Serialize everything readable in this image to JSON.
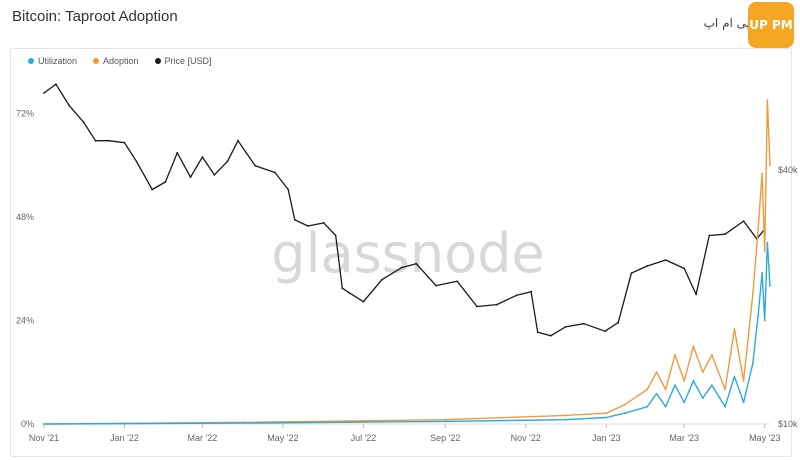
{
  "page": {
    "title": "Bitcoin: Taproot Adoption",
    "watermark": "glassnode"
  },
  "logo": {
    "text": "پی ام اپ",
    "badge": "UP PM"
  },
  "legend": [
    {
      "label": "Utilization",
      "color": "#2ea9df"
    },
    {
      "label": "Adoption",
      "color": "#f09a3e"
    },
    {
      "label": "Price [USD]",
      "color": "#1a1a1a"
    }
  ],
  "chart_data": {
    "type": "line",
    "x_labels": [
      "Nov '21",
      "Jan '22",
      "Mar '22",
      "May '22",
      "Jul '22",
      "Sep '22",
      "Nov '22",
      "Jan '23",
      "Mar '23",
      "May '23"
    ],
    "left_axis": {
      "ticks": [
        "72%",
        "48%",
        "24%",
        "0%"
      ],
      "values": [
        72,
        48,
        24,
        0
      ],
      "ylim": [
        0,
        76
      ]
    },
    "right_axis": {
      "ticks": [
        "$40k",
        "$10k"
      ],
      "scale": "log",
      "ylim": [
        10000,
        60000
      ]
    },
    "series": [
      {
        "name": "Price [USD]",
        "color": "#1a1a1a",
        "axis": "right",
        "x": [
          "2021-11-01",
          "2021-11-10",
          "2021-11-20",
          "2021-12-01",
          "2021-12-10",
          "2021-12-20",
          "2022-01-01",
          "2022-01-10",
          "2022-01-22",
          "2022-02-01",
          "2022-02-10",
          "2022-02-20",
          "2022-03-01",
          "2022-03-10",
          "2022-03-20",
          "2022-03-28",
          "2022-04-10",
          "2022-04-25",
          "2022-05-05",
          "2022-05-10",
          "2022-05-20",
          "2022-06-01",
          "2022-06-10",
          "2022-06-15",
          "2022-06-20",
          "2022-07-01",
          "2022-07-15",
          "2022-07-30",
          "2022-08-10",
          "2022-08-25",
          "2022-09-10",
          "2022-09-25",
          "2022-10-10",
          "2022-10-25",
          "2022-11-05",
          "2022-11-10",
          "2022-11-20",
          "2022-12-01",
          "2022-12-15",
          "2022-12-31",
          "2023-01-10",
          "2023-01-20",
          "2023-02-01",
          "2023-02-15",
          "2023-03-01",
          "2023-03-10",
          "2023-03-20",
          "2023-04-01",
          "2023-04-15",
          "2023-04-25",
          "2023-05-01"
        ],
        "values": [
          61000,
          64000,
          57000,
          52000,
          47000,
          47000,
          46500,
          42000,
          36000,
          37500,
          44000,
          38500,
          43000,
          39000,
          42000,
          47000,
          41000,
          39500,
          36000,
          30500,
          29500,
          30000,
          28000,
          21000,
          20500,
          19500,
          22000,
          23500,
          24000,
          21300,
          21800,
          19000,
          19200,
          20200,
          20600,
          16500,
          16200,
          17000,
          17300,
          16600,
          17400,
          22800,
          23700,
          24500,
          23400,
          20300,
          28000,
          28200,
          30300,
          27500,
          29000
        ]
      },
      {
        "name": "Adoption",
        "color": "#f09a3e",
        "axis": "left",
        "x": [
          "2021-11-01",
          "2022-04-01",
          "2022-09-01",
          "2022-12-01",
          "2023-01-01",
          "2023-01-15",
          "2023-02-01",
          "2023-02-08",
          "2023-02-15",
          "2023-02-22",
          "2023-03-01",
          "2023-03-08",
          "2023-03-15",
          "2023-03-22",
          "2023-04-01",
          "2023-04-08",
          "2023-04-15",
          "2023-04-22",
          "2023-04-26",
          "2023-04-29",
          "2023-05-01",
          "2023-05-03",
          "2023-05-05"
        ],
        "values": [
          0,
          0.4,
          1.0,
          2.0,
          2.5,
          4.5,
          8,
          12,
          8,
          16,
          10,
          18,
          12,
          16,
          8,
          22,
          10,
          30,
          45,
          58,
          40,
          75,
          60
        ]
      },
      {
        "name": "Utilization",
        "color": "#2ea9df",
        "axis": "left",
        "x": [
          "2021-11-01",
          "2022-04-01",
          "2022-09-01",
          "2022-12-01",
          "2023-01-01",
          "2023-01-15",
          "2023-02-01",
          "2023-02-08",
          "2023-02-15",
          "2023-02-22",
          "2023-03-01",
          "2023-03-08",
          "2023-03-15",
          "2023-03-22",
          "2023-04-01",
          "2023-04-08",
          "2023-04-15",
          "2023-04-22",
          "2023-04-26",
          "2023-04-29",
          "2023-05-01",
          "2023-05-03",
          "2023-05-05"
        ],
        "values": [
          0,
          0.2,
          0.6,
          1.0,
          1.5,
          2.5,
          4,
          7,
          4,
          9,
          5,
          10,
          6,
          9,
          4,
          11,
          5,
          14,
          25,
          35,
          24,
          42,
          32
        ]
      }
    ]
  }
}
